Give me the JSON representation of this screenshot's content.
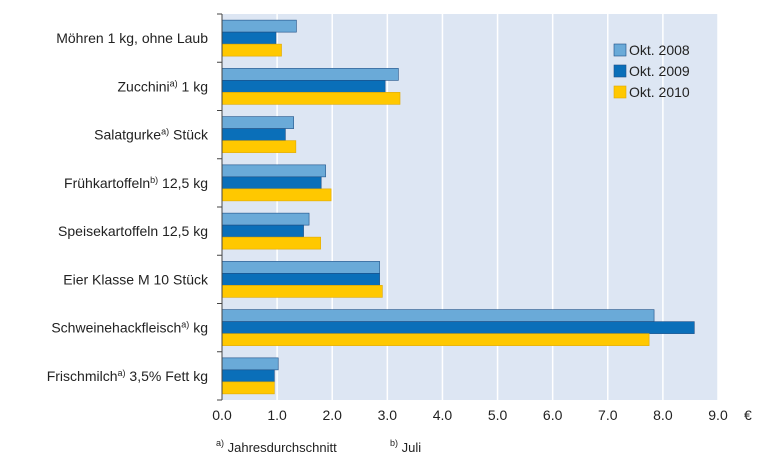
{
  "chart_data": {
    "type": "bar",
    "orientation": "horizontal",
    "categories": [
      {
        "main": "Möhren 1 kg, ohne Laub",
        "sup": "",
        "tail": ""
      },
      {
        "main": "Zucchini",
        "sup": "a)",
        "tail": " 1 kg"
      },
      {
        "main": "Salatgurke",
        "sup": "a)",
        "tail": " Stück"
      },
      {
        "main": "Frühkartoffeln",
        "sup": "b)",
        "tail": "  12,5 kg"
      },
      {
        "main": "Speisekartoffeln 12,5 kg",
        "sup": "",
        "tail": ""
      },
      {
        "main": "Eier Klasse M 10 Stück",
        "sup": "",
        "tail": ""
      },
      {
        "main": "Schweinehackfleisch",
        "sup": "a)",
        "tail": " kg"
      },
      {
        "main": "Frischmilch",
        "sup": "a)",
        "tail": " 3,5% Fett kg"
      }
    ],
    "series": [
      {
        "name": "Okt. 2008",
        "color": "#6aaad8",
        "values": [
          1.35,
          3.2,
          1.3,
          1.88,
          1.58,
          2.86,
          7.84,
          1.02
        ]
      },
      {
        "name": "Okt. 2009",
        "color": "#0a6fb9",
        "values": [
          0.98,
          2.96,
          1.15,
          1.8,
          1.48,
          2.86,
          8.57,
          0.95
        ]
      },
      {
        "name": "Okt. 2010",
        "color": "#ffc800",
        "values": [
          1.08,
          3.23,
          1.34,
          1.98,
          1.79,
          2.91,
          7.75,
          0.95
        ]
      }
    ],
    "xlim": [
      0,
      9
    ],
    "xticks": [
      "0.0",
      "1.0",
      "2.0",
      "3.0",
      "4.0",
      "5.0",
      "6.0",
      "7.0",
      "8.0",
      "9.0"
    ],
    "unit": "€",
    "grid": "vertical",
    "legend_position": "top-right",
    "plot_background": "#dde6f3",
    "footnotes": [
      {
        "sup": "a)",
        "text": " Jahresdurchschnitt"
      },
      {
        "sup": "b)",
        "text": " Juli"
      }
    ]
  }
}
